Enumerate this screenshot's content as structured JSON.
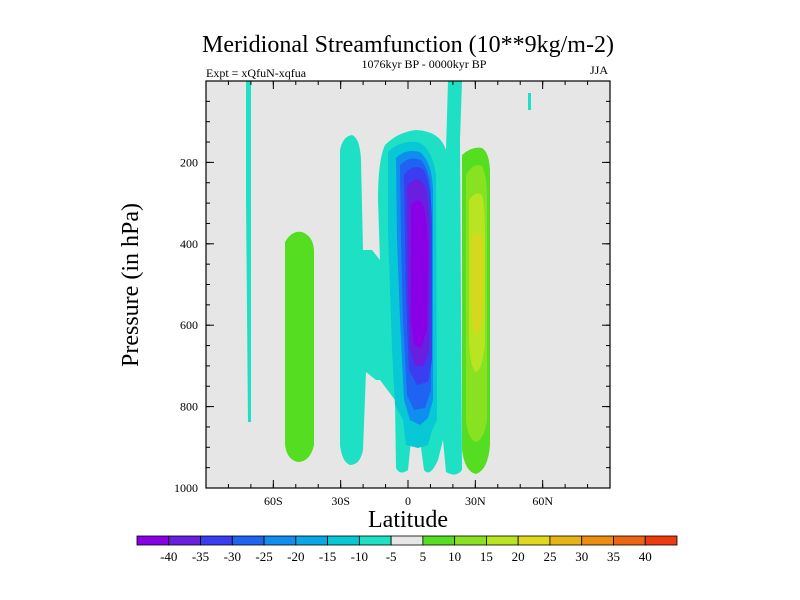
{
  "chart_data": {
    "type": "contour",
    "title": "Meridional Streamfunction (10**9kg/m-2)",
    "subtitle_left": "Expt = xQfuN-xqfua",
    "subtitle_center": "1076kyr BP - 0000kyr BP",
    "subtitle_right": "JJA",
    "xlabel": "Latitude",
    "ylabel": "Pressure (in hPa)",
    "xlim": [
      -90,
      90
    ],
    "ylim": [
      1000,
      0
    ],
    "x_ticks": [
      {
        "value": -60,
        "label": "60S"
      },
      {
        "value": -30,
        "label": "30S"
      },
      {
        "value": 0,
        "label": "0"
      },
      {
        "value": 30,
        "label": "30N"
      },
      {
        "value": 60,
        "label": "60N"
      }
    ],
    "y_ticks": [
      {
        "value": 200,
        "label": "200"
      },
      {
        "value": 400,
        "label": "400"
      },
      {
        "value": 600,
        "label": "600"
      },
      {
        "value": 800,
        "label": "800"
      },
      {
        "value": 1000,
        "label": "1000"
      }
    ],
    "colorbar": {
      "labels": [
        "-40",
        "-35",
        "-30",
        "-25",
        "-20",
        "-15",
        "-10",
        "-5",
        "5",
        "10",
        "15",
        "20",
        "25",
        "30",
        "35",
        "40"
      ],
      "colors": [
        "#8a00e6",
        "#6a1fe0",
        "#3a3ef0",
        "#1f63f2",
        "#0f8ef0",
        "#08a8e8",
        "#08c8d6",
        "#1ee0c4",
        "#e6e6e6",
        "#55dd22",
        "#88e222",
        "#b8e422",
        "#e0d81e",
        "#e8b414",
        "#ec8c10",
        "#ee6410",
        "#ee3a10"
      ]
    },
    "background_color": "#e6e6e6",
    "features": [
      {
        "name": "nh-tropical-negative-cell",
        "min_value": -40,
        "lat_range": [
          -5,
          15
        ],
        "p_range": [
          130,
          990
        ]
      },
      {
        "name": "nh-subtropical-positive-cell",
        "max_value": 20,
        "lat_range": [
          22,
          38
        ],
        "p_range": [
          150,
          970
        ]
      },
      {
        "name": "sh-midlatitude-positive-cell",
        "max_value": 10,
        "lat_range": [
          -55,
          -45
        ],
        "p_range": [
          380,
          930
        ]
      },
      {
        "name": "sh-subtropical-negative-band",
        "min_value": -10,
        "lat_range": [
          -30,
          -5
        ],
        "p_range": [
          120,
          980
        ]
      }
    ]
  }
}
